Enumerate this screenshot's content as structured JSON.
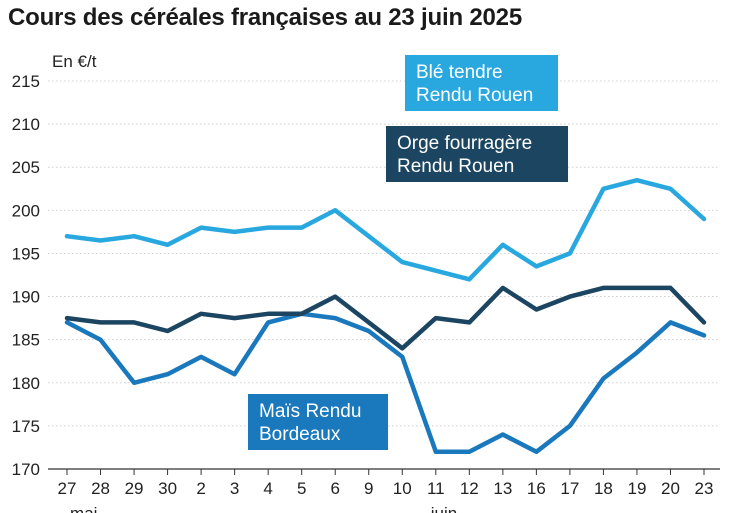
{
  "chart_data": {
    "type": "line",
    "title": "Cours des céréales françaises au 23 juin 2025",
    "unit_label": "En €/t",
    "categories": [
      "27",
      "28",
      "29",
      "30",
      "2",
      "3",
      "4",
      "5",
      "6",
      "9",
      "10",
      "11",
      "12",
      "13",
      "16",
      "17",
      "18",
      "19",
      "20",
      "23"
    ],
    "month_labels": [
      {
        "label": "mai",
        "after_index": 1
      },
      {
        "label": "juin",
        "after_index": 11
      }
    ],
    "ylim": [
      170,
      215
    ],
    "yticks": [
      170,
      175,
      180,
      185,
      190,
      195,
      200,
      205,
      210,
      215
    ],
    "grid": true,
    "series": [
      {
        "name_lines": [
          "Blé tendre",
          "Rendu Rouen"
        ],
        "color": "#29a8e0",
        "values": [
          197,
          196.5,
          197,
          196,
          198,
          197.5,
          198,
          198,
          200,
          197,
          194,
          193,
          192,
          196,
          193.5,
          195,
          202.5,
          203.5,
          202.5,
          199
        ]
      },
      {
        "name_lines": [
          "Orge fourragère",
          "Rendu Rouen"
        ],
        "color": "#1b4560",
        "values": [
          187.5,
          187,
          187,
          186,
          188,
          187.5,
          188,
          188,
          190,
          187,
          184,
          187.5,
          187,
          191,
          188.5,
          190,
          191,
          191,
          191,
          187
        ]
      },
      {
        "name_lines": [
          "Maïs Rendu",
          "Bordeaux"
        ],
        "color": "#1a78bc",
        "values": [
          187,
          185,
          180,
          181,
          183,
          181,
          187,
          188,
          187.5,
          186,
          183,
          172,
          172,
          174,
          172,
          175,
          180.5,
          183.5,
          187,
          185.5
        ]
      }
    ]
  }
}
